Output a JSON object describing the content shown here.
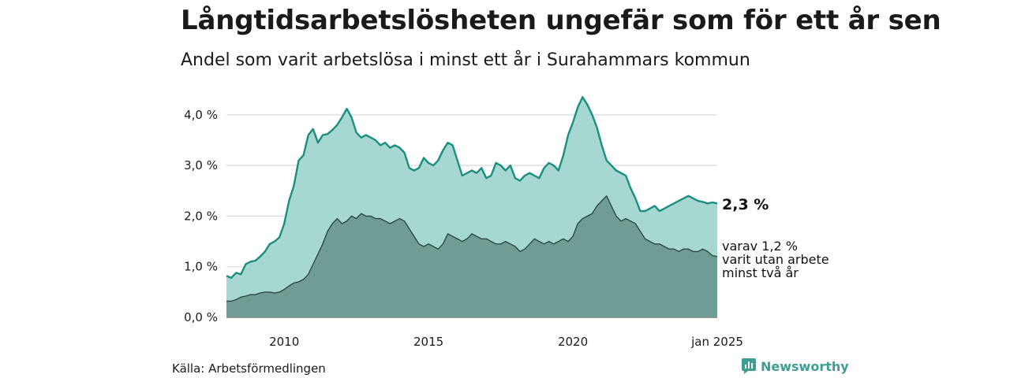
{
  "header": {
    "title": "Långtidsarbetslösheten ungefär som för ett år sen",
    "subtitle": "Andel som varit arbetslösa i minst ett år i Surahammars kommun"
  },
  "footer": {
    "source": "Källa: Arbetsförmedlingen",
    "brand": "Newsworthy"
  },
  "colors": {
    "total_line": "#1a8f80",
    "total_fill": "#a6d7d0",
    "longterm_fill": "#6f9d95",
    "longterm_line": "#2b4a45",
    "grid": "#d9d9d9"
  },
  "chart_data": {
    "type": "area",
    "x_range": [
      "2008-01",
      "2025-01"
    ],
    "ylim": [
      0,
      4.5
    ],
    "y_ticks": [
      0,
      1,
      2,
      3,
      4
    ],
    "y_tick_labels": [
      "0,0 %",
      "1,0 %",
      "2,0 %",
      "3,0 %",
      "4,0 %"
    ],
    "x_ticks": [
      2010,
      2015,
      2020,
      2025
    ],
    "x_tick_labels": [
      "2010",
      "2015",
      "2020",
      "jan 2025"
    ],
    "grid": true,
    "series": [
      {
        "name": "",
        "end_label": "2,3 %",
        "points": [
          [
            "2008-01",
            0.82
          ],
          [
            "2008-03",
            0.78
          ],
          [
            "2008-05",
            0.88
          ],
          [
            "2008-07",
            0.85
          ],
          [
            "2008-09",
            1.05
          ],
          [
            "2008-11",
            1.1
          ],
          [
            "2009-01",
            1.12
          ],
          [
            "2009-03",
            1.2
          ],
          [
            "2009-05",
            1.3
          ],
          [
            "2009-07",
            1.45
          ],
          [
            "2009-09",
            1.5
          ],
          [
            "2009-11",
            1.58
          ],
          [
            "2010-01",
            1.85
          ],
          [
            "2010-03",
            2.3
          ],
          [
            "2010-05",
            2.6
          ],
          [
            "2010-07",
            3.1
          ],
          [
            "2010-09",
            3.2
          ],
          [
            "2010-11",
            3.6
          ],
          [
            "2011-01",
            3.72
          ],
          [
            "2011-03",
            3.45
          ],
          [
            "2011-05",
            3.6
          ],
          [
            "2011-07",
            3.62
          ],
          [
            "2011-09",
            3.7
          ],
          [
            "2011-11",
            3.8
          ],
          [
            "2012-01",
            3.95
          ],
          [
            "2012-03",
            4.12
          ],
          [
            "2012-05",
            3.95
          ],
          [
            "2012-07",
            3.65
          ],
          [
            "2012-09",
            3.55
          ],
          [
            "2012-11",
            3.6
          ],
          [
            "2013-01",
            3.55
          ],
          [
            "2013-03",
            3.5
          ],
          [
            "2013-05",
            3.4
          ],
          [
            "2013-07",
            3.45
          ],
          [
            "2013-09",
            3.35
          ],
          [
            "2013-11",
            3.4
          ],
          [
            "2014-01",
            3.35
          ],
          [
            "2014-03",
            3.25
          ],
          [
            "2014-05",
            2.95
          ],
          [
            "2014-07",
            2.9
          ],
          [
            "2014-09",
            2.95
          ],
          [
            "2014-11",
            3.15
          ],
          [
            "2015-01",
            3.05
          ],
          [
            "2015-03",
            3.0
          ],
          [
            "2015-05",
            3.1
          ],
          [
            "2015-07",
            3.3
          ],
          [
            "2015-09",
            3.45
          ],
          [
            "2015-11",
            3.4
          ],
          [
            "2016-01",
            3.1
          ],
          [
            "2016-03",
            2.8
          ],
          [
            "2016-05",
            2.85
          ],
          [
            "2016-07",
            2.9
          ],
          [
            "2016-09",
            2.85
          ],
          [
            "2016-11",
            2.95
          ],
          [
            "2017-01",
            2.75
          ],
          [
            "2017-03",
            2.8
          ],
          [
            "2017-05",
            3.05
          ],
          [
            "2017-07",
            3.0
          ],
          [
            "2017-09",
            2.9
          ],
          [
            "2017-11",
            3.0
          ],
          [
            "2018-01",
            2.75
          ],
          [
            "2018-03",
            2.7
          ],
          [
            "2018-05",
            2.8
          ],
          [
            "2018-07",
            2.85
          ],
          [
            "2018-09",
            2.8
          ],
          [
            "2018-11",
            2.75
          ],
          [
            "2019-01",
            2.95
          ],
          [
            "2019-03",
            3.05
          ],
          [
            "2019-05",
            3.0
          ],
          [
            "2019-07",
            2.9
          ],
          [
            "2019-09",
            3.2
          ],
          [
            "2019-11",
            3.6
          ],
          [
            "2020-01",
            3.85
          ],
          [
            "2020-03",
            4.15
          ],
          [
            "2020-05",
            4.35
          ],
          [
            "2020-07",
            4.2
          ],
          [
            "2020-09",
            4.0
          ],
          [
            "2020-11",
            3.75
          ],
          [
            "2021-01",
            3.4
          ],
          [
            "2021-03",
            3.1
          ],
          [
            "2021-05",
            3.0
          ],
          [
            "2021-07",
            2.9
          ],
          [
            "2021-09",
            2.85
          ],
          [
            "2021-11",
            2.8
          ],
          [
            "2022-01",
            2.55
          ],
          [
            "2022-03",
            2.35
          ],
          [
            "2022-05",
            2.1
          ],
          [
            "2022-07",
            2.1
          ],
          [
            "2022-09",
            2.15
          ],
          [
            "2022-11",
            2.2
          ],
          [
            "2023-01",
            2.1
          ],
          [
            "2023-03",
            2.15
          ],
          [
            "2023-05",
            2.2
          ],
          [
            "2023-07",
            2.25
          ],
          [
            "2023-09",
            2.3
          ],
          [
            "2023-11",
            2.35
          ],
          [
            "2024-01",
            2.4
          ],
          [
            "2024-03",
            2.35
          ],
          [
            "2024-05",
            2.3
          ],
          [
            "2024-07",
            2.28
          ],
          [
            "2024-09",
            2.25
          ],
          [
            "2024-11",
            2.27
          ],
          [
            "2025-01",
            2.25
          ]
        ]
      },
      {
        "name": "",
        "end_label": "varav 1,2 %",
        "end_label_lines": [
          "varav 1,2 %",
          "varit utan arbete",
          "minst två år"
        ],
        "points": [
          [
            "2008-01",
            0.32
          ],
          [
            "2008-03",
            0.32
          ],
          [
            "2008-05",
            0.35
          ],
          [
            "2008-07",
            0.4
          ],
          [
            "2008-09",
            0.42
          ],
          [
            "2008-11",
            0.45
          ],
          [
            "2009-01",
            0.45
          ],
          [
            "2009-03",
            0.48
          ],
          [
            "2009-05",
            0.5
          ],
          [
            "2009-07",
            0.5
          ],
          [
            "2009-09",
            0.48
          ],
          [
            "2009-11",
            0.5
          ],
          [
            "2010-01",
            0.55
          ],
          [
            "2010-03",
            0.62
          ],
          [
            "2010-05",
            0.68
          ],
          [
            "2010-07",
            0.7
          ],
          [
            "2010-09",
            0.75
          ],
          [
            "2010-11",
            0.85
          ],
          [
            "2011-01",
            1.05
          ],
          [
            "2011-03",
            1.25
          ],
          [
            "2011-05",
            1.45
          ],
          [
            "2011-07",
            1.7
          ],
          [
            "2011-09",
            1.85
          ],
          [
            "2011-11",
            1.95
          ],
          [
            "2012-01",
            1.85
          ],
          [
            "2012-03",
            1.9
          ],
          [
            "2012-05",
            2.0
          ],
          [
            "2012-07",
            1.95
          ],
          [
            "2012-09",
            2.05
          ],
          [
            "2012-11",
            2.0
          ],
          [
            "2013-01",
            2.0
          ],
          [
            "2013-03",
            1.95
          ],
          [
            "2013-05",
            1.95
          ],
          [
            "2013-07",
            1.9
          ],
          [
            "2013-09",
            1.85
          ],
          [
            "2013-11",
            1.9
          ],
          [
            "2014-01",
            1.95
          ],
          [
            "2014-03",
            1.9
          ],
          [
            "2014-05",
            1.75
          ],
          [
            "2014-07",
            1.6
          ],
          [
            "2014-09",
            1.45
          ],
          [
            "2014-11",
            1.4
          ],
          [
            "2015-01",
            1.45
          ],
          [
            "2015-03",
            1.4
          ],
          [
            "2015-05",
            1.35
          ],
          [
            "2015-07",
            1.45
          ],
          [
            "2015-09",
            1.65
          ],
          [
            "2015-11",
            1.6
          ],
          [
            "2016-01",
            1.55
          ],
          [
            "2016-03",
            1.5
          ],
          [
            "2016-05",
            1.55
          ],
          [
            "2016-07",
            1.65
          ],
          [
            "2016-09",
            1.6
          ],
          [
            "2016-11",
            1.55
          ],
          [
            "2017-01",
            1.55
          ],
          [
            "2017-03",
            1.5
          ],
          [
            "2017-05",
            1.45
          ],
          [
            "2017-07",
            1.45
          ],
          [
            "2017-09",
            1.5
          ],
          [
            "2017-11",
            1.45
          ],
          [
            "2018-01",
            1.4
          ],
          [
            "2018-03",
            1.3
          ],
          [
            "2018-05",
            1.35
          ],
          [
            "2018-07",
            1.45
          ],
          [
            "2018-09",
            1.55
          ],
          [
            "2018-11",
            1.5
          ],
          [
            "2019-01",
            1.45
          ],
          [
            "2019-03",
            1.5
          ],
          [
            "2019-05",
            1.45
          ],
          [
            "2019-07",
            1.5
          ],
          [
            "2019-09",
            1.55
          ],
          [
            "2019-11",
            1.5
          ],
          [
            "2020-01",
            1.6
          ],
          [
            "2020-03",
            1.85
          ],
          [
            "2020-05",
            1.95
          ],
          [
            "2020-07",
            2.0
          ],
          [
            "2020-09",
            2.05
          ],
          [
            "2020-11",
            2.2
          ],
          [
            "2021-01",
            2.3
          ],
          [
            "2021-03",
            2.4
          ],
          [
            "2021-05",
            2.2
          ],
          [
            "2021-07",
            2.0
          ],
          [
            "2021-09",
            1.9
          ],
          [
            "2021-11",
            1.95
          ],
          [
            "2022-01",
            1.9
          ],
          [
            "2022-03",
            1.85
          ],
          [
            "2022-05",
            1.7
          ],
          [
            "2022-07",
            1.55
          ],
          [
            "2022-09",
            1.5
          ],
          [
            "2022-11",
            1.45
          ],
          [
            "2023-01",
            1.45
          ],
          [
            "2023-03",
            1.4
          ],
          [
            "2023-05",
            1.35
          ],
          [
            "2023-07",
            1.35
          ],
          [
            "2023-09",
            1.3
          ],
          [
            "2023-11",
            1.35
          ],
          [
            "2024-01",
            1.35
          ],
          [
            "2024-03",
            1.3
          ],
          [
            "2024-05",
            1.3
          ],
          [
            "2024-07",
            1.35
          ],
          [
            "2024-09",
            1.3
          ],
          [
            "2024-11",
            1.22
          ],
          [
            "2025-01",
            1.2
          ]
        ]
      }
    ]
  }
}
